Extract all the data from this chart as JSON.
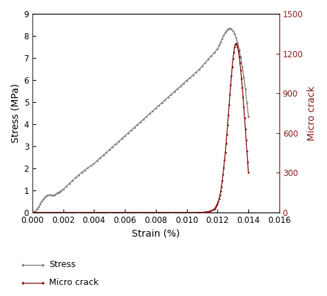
{
  "title": "",
  "xlabel": "Strain (%)",
  "ylabel_left": "Stress (MPa)",
  "ylabel_right": "Micro crack",
  "xlim": [
    0.0,
    0.016
  ],
  "ylim_left": [
    0,
    9
  ],
  "ylim_right": [
    0,
    1500
  ],
  "xticks": [
    0.0,
    0.002,
    0.004,
    0.006,
    0.008,
    0.01,
    0.012,
    0.014,
    0.016
  ],
  "yticks_left": [
    0,
    1,
    2,
    3,
    4,
    5,
    6,
    7,
    8,
    9
  ],
  "yticks_right": [
    0,
    300,
    600,
    900,
    1200,
    1500
  ],
  "stress_color": "#808080",
  "microcrack_color": "#8B1A1A",
  "stress_x": [
    0.0,
    0.0001,
    0.0002,
    0.0003,
    0.0004,
    0.0005,
    0.0006,
    0.0007,
    0.0008,
    0.0009,
    0.001,
    0.0011,
    0.0012,
    0.0013,
    0.0014,
    0.0015,
    0.0016,
    0.0017,
    0.0018,
    0.0019,
    0.002,
    0.0022,
    0.0024,
    0.0026,
    0.0028,
    0.003,
    0.0032,
    0.0034,
    0.0036,
    0.0038,
    0.004,
    0.0042,
    0.0044,
    0.0046,
    0.0048,
    0.005,
    0.0052,
    0.0054,
    0.0056,
    0.0058,
    0.006,
    0.0062,
    0.0064,
    0.0066,
    0.0068,
    0.007,
    0.0072,
    0.0074,
    0.0076,
    0.0078,
    0.008,
    0.0082,
    0.0084,
    0.0086,
    0.0088,
    0.009,
    0.0092,
    0.0094,
    0.0096,
    0.0098,
    0.01,
    0.0102,
    0.0104,
    0.0106,
    0.0108,
    0.011,
    0.0112,
    0.0114,
    0.0116,
    0.0118,
    0.012,
    0.0121,
    0.0122,
    0.0123,
    0.0124,
    0.0125,
    0.0126,
    0.0127,
    0.0128,
    0.0129,
    0.013,
    0.0131,
    0.0132,
    0.0133,
    0.0134,
    0.0135,
    0.0136,
    0.0137,
    0.0138,
    0.0139,
    0.014
  ],
  "stress_y": [
    0.0,
    0.02,
    0.06,
    0.15,
    0.25,
    0.38,
    0.5,
    0.6,
    0.68,
    0.74,
    0.78,
    0.8,
    0.78,
    0.77,
    0.78,
    0.82,
    0.88,
    0.92,
    0.95,
    1.0,
    1.05,
    1.18,
    1.32,
    1.45,
    1.58,
    1.7,
    1.82,
    1.92,
    2.02,
    2.12,
    2.22,
    2.35,
    2.48,
    2.6,
    2.72,
    2.85,
    2.98,
    3.1,
    3.22,
    3.35,
    3.48,
    3.6,
    3.72,
    3.85,
    3.98,
    4.1,
    4.22,
    4.35,
    4.48,
    4.6,
    4.72,
    4.85,
    4.98,
    5.1,
    5.22,
    5.35,
    5.48,
    5.6,
    5.72,
    5.85,
    5.98,
    6.1,
    6.22,
    6.35,
    6.48,
    6.62,
    6.78,
    6.95,
    7.1,
    7.25,
    7.42,
    7.58,
    7.72,
    7.88,
    8.02,
    8.15,
    8.25,
    8.32,
    8.35,
    8.3,
    8.22,
    8.1,
    7.92,
    7.68,
    7.38,
    7.02,
    6.6,
    6.12,
    5.58,
    4.98,
    4.35
  ],
  "microcrack_x": [
    0.0,
    0.001,
    0.002,
    0.003,
    0.004,
    0.005,
    0.006,
    0.007,
    0.008,
    0.009,
    0.01,
    0.0105,
    0.011,
    0.0111,
    0.0112,
    0.0113,
    0.0114,
    0.0115,
    0.0116,
    0.0117,
    0.0118,
    0.01185,
    0.0119,
    0.01195,
    0.012,
    0.01205,
    0.0121,
    0.01215,
    0.0122,
    0.01225,
    0.0123,
    0.01235,
    0.0124,
    0.01245,
    0.0125,
    0.01255,
    0.0126,
    0.01265,
    0.0127,
    0.01275,
    0.0128,
    0.01285,
    0.0129,
    0.01295,
    0.013,
    0.01305,
    0.0131,
    0.01315,
    0.0132,
    0.01325,
    0.0133,
    0.01335,
    0.0134,
    0.01345,
    0.0135,
    0.01355,
    0.0136,
    0.01365,
    0.0137,
    0.01375,
    0.0138,
    0.01385,
    0.0139,
    0.01395,
    0.014
  ],
  "microcrack_y": [
    0,
    0,
    0,
    0,
    0,
    0,
    0,
    0,
    0,
    0,
    0,
    0,
    1,
    2,
    3,
    5,
    7,
    10,
    14,
    20,
    28,
    35,
    44,
    55,
    68,
    85,
    105,
    130,
    160,
    195,
    238,
    285,
    338,
    395,
    455,
    520,
    590,
    660,
    735,
    812,
    888,
    962,
    1033,
    1100,
    1160,
    1210,
    1248,
    1270,
    1275,
    1268,
    1248,
    1218,
    1178,
    1130,
    1075,
    1012,
    945,
    872,
    795,
    715,
    632,
    548,
    465,
    382,
    302
  ],
  "legend_stress": "Stress",
  "legend_microcrack": "Micro crack",
  "bg_color": "#ffffff",
  "stress_marker": "D",
  "microcrack_marker": "D",
  "marker_size": 1.5,
  "linewidth": 1.0
}
